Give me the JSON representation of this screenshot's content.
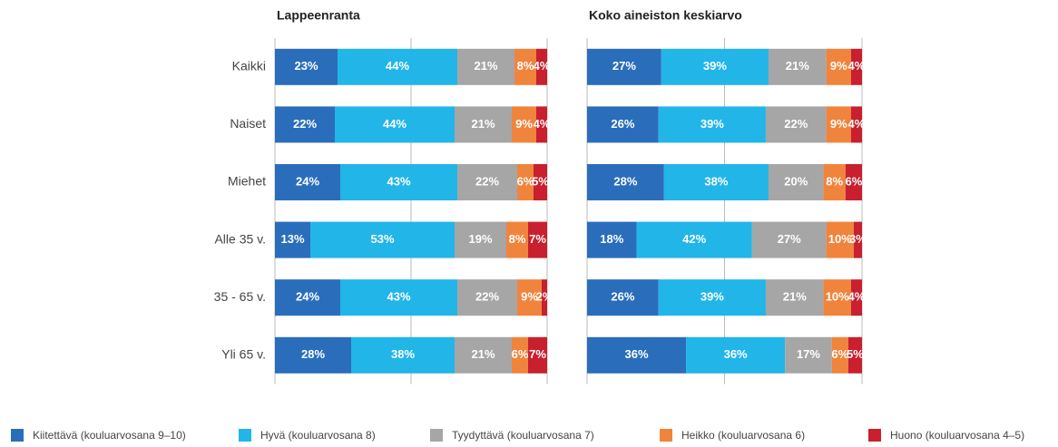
{
  "chart_data": [
    {
      "type": "bar",
      "orientation": "horizontal",
      "stacked": true,
      "title": "Lappeenranta",
      "categories": [
        "Kaikki",
        "Naiset",
        "Miehet",
        "Alle 35 v.",
        "35 - 65 v.",
        "Yli 65 v."
      ],
      "xlim": [
        0,
        100
      ],
      "xticks": [
        0,
        50,
        100
      ],
      "grid": true,
      "legend": "bottom",
      "series": [
        {
          "name": "Kiitettävä (kouluarvosana 9–10)",
          "color": "#2a6ebb",
          "values": [
            23,
            22,
            24,
            13,
            24,
            28
          ],
          "value_labels": [
            "23%",
            "22%",
            "24%",
            "13%",
            "24%",
            "28%"
          ]
        },
        {
          "name": "Hyvä (kouluarvosana 8)",
          "color": "#22b5e8",
          "values": [
            44,
            44,
            43,
            53,
            43,
            38
          ],
          "value_labels": [
            "44%",
            "44%",
            "43%",
            "53%",
            "43%",
            "38%"
          ]
        },
        {
          "name": "Tyydyttävä (kouluarvosana 7)",
          "color": "#a6a6a6",
          "values": [
            21,
            21,
            22,
            19,
            22,
            21
          ],
          "value_labels": [
            "21%",
            "21%",
            "22%",
            "19%",
            "22%",
            "21%"
          ]
        },
        {
          "name": "Heikko (kouluarvosana 6)",
          "color": "#f0843c",
          "values": [
            8,
            9,
            6,
            8,
            9,
            6
          ],
          "value_labels": [
            "8%",
            "9%",
            "6%",
            "8%",
            "9%",
            "6%"
          ]
        },
        {
          "name": "Huono (kouluarvosana 4–5)",
          "color": "#c8202f",
          "values": [
            4,
            4,
            5,
            7,
            2,
            7
          ],
          "value_labels": [
            "4%",
            "4%",
            "5%",
            "7%",
            "2%",
            "7%"
          ]
        }
      ]
    },
    {
      "type": "bar",
      "orientation": "horizontal",
      "stacked": true,
      "title": "Koko aineiston keskiarvo",
      "xlim": [
        0,
        100
      ],
      "xticks": [
        0,
        50,
        100
      ],
      "grid": true,
      "series": [
        {
          "color": "#2a6ebb",
          "values": [
            27,
            26,
            28,
            18,
            26,
            36
          ],
          "value_labels": [
            "27%",
            "26%",
            "28%",
            "18%",
            "26%",
            "36%"
          ]
        },
        {
          "color": "#22b5e8",
          "values": [
            39,
            39,
            38,
            42,
            39,
            36
          ],
          "value_labels": [
            "39%",
            "39%",
            "38%",
            "42%",
            "39%",
            "36%"
          ]
        },
        {
          "color": "#a6a6a6",
          "values": [
            21,
            22,
            20,
            27,
            21,
            17
          ],
          "value_labels": [
            "21%",
            "22%",
            "20%",
            "27%",
            "21%",
            "17%"
          ]
        },
        {
          "color": "#f0843c",
          "values": [
            9,
            9,
            8,
            10,
            10,
            6
          ],
          "value_labels": [
            "9%",
            "9%",
            "8%",
            "10%",
            "10%",
            "6%"
          ]
        },
        {
          "color": "#c8202f",
          "values": [
            4,
            4,
            6,
            3,
            4,
            5
          ],
          "value_labels": [
            "4%",
            "4%",
            "6%",
            "3%",
            "4%",
            "5%"
          ]
        }
      ]
    }
  ]
}
